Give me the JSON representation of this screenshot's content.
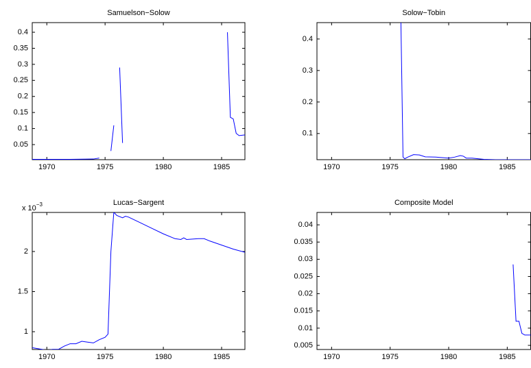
{
  "chart_data": [
    {
      "type": "line",
      "title": "Samuelson−Solow",
      "color": "#0000ff",
      "x": [
        1968.75,
        1970,
        1972,
        1974,
        1974.5,
        1975,
        1975.5,
        1975.75,
        1976,
        1976.25,
        1976.5,
        1980,
        1985.5,
        1985.75,
        1986,
        1986.25,
        1986.5,
        1987
      ],
      "values": [
        0.004,
        0.004,
        0.004,
        0.005,
        0.008,
        null,
        0.03,
        0.11,
        null,
        0.29,
        0.055,
        null,
        0.4,
        0.135,
        0.13,
        0.085,
        0.078,
        0.08
      ],
      "xlim": [
        1968.75,
        1987
      ],
      "xticks": [
        1970,
        1975,
        1980,
        1985
      ],
      "ylim": [
        0.003,
        0.43
      ],
      "yticks": [
        0.05,
        0.1,
        0.15,
        0.2,
        0.25,
        0.3,
        0.35,
        0.4
      ]
    },
    {
      "type": "line",
      "title": "Solow−Tobin",
      "color": "#0000ff",
      "x": [
        1975.9,
        1976.1,
        1976.25,
        1976.5,
        1977,
        1977.5,
        1978,
        1979,
        1980,
        1980.5,
        1981,
        1981.25,
        1981.5,
        1982,
        1983,
        1984,
        1987
      ],
      "values": [
        0.5,
        0.025,
        0.02,
        0.025,
        0.033,
        0.032,
        0.026,
        0.025,
        0.022,
        0.025,
        0.03,
        0.028,
        0.022,
        0.022,
        0.018,
        0.017,
        0.017
      ],
      "xlim": [
        1968.75,
        1987
      ],
      "xticks": [
        1970,
        1975,
        1980,
        1985
      ],
      "ylim": [
        0.017,
        0.452
      ],
      "yticks": [
        0.1,
        0.2,
        0.3,
        0.4
      ]
    },
    {
      "type": "line",
      "title": "Lucas−Sargent",
      "color": "#0000ff",
      "y_multiplier": {
        "base": "x 10",
        "exponent": "−3"
      },
      "x": [
        1968.75,
        1970,
        1970.5,
        1971,
        1971.5,
        1972,
        1972.5,
        1973,
        1973.5,
        1974,
        1974.5,
        1975,
        1975.25,
        1975.5,
        1975.75,
        1976,
        1976.5,
        1976.75,
        1977,
        1978,
        1979,
        1980,
        1981,
        1981.5,
        1981.75,
        1982,
        1983,
        1983.5,
        1984,
        1985,
        1986,
        1987
      ],
      "values": [
        0.8,
        0.77,
        0.78,
        0.78,
        0.82,
        0.85,
        0.85,
        0.88,
        0.87,
        0.86,
        0.9,
        0.93,
        0.97,
        2.0,
        2.49,
        2.45,
        2.42,
        2.44,
        2.43,
        2.36,
        2.29,
        2.22,
        2.16,
        2.15,
        2.17,
        2.15,
        2.16,
        2.16,
        2.13,
        2.08,
        2.03,
        1.99
      ],
      "xlim": [
        1968.75,
        1987
      ],
      "xticks": [
        1970,
        1975,
        1980,
        1985
      ],
      "ylim": [
        0.778,
        2.487
      ],
      "yticks": [
        1,
        1.5,
        2
      ]
    },
    {
      "type": "line",
      "title": "Composite Model",
      "color": "#0000ff",
      "x": [
        1985.5,
        1985.75,
        1986,
        1986.25,
        1986.5,
        1987
      ],
      "values": [
        0.0285,
        0.012,
        0.012,
        0.0085,
        0.008,
        0.008
      ],
      "xlim": [
        1968.75,
        1987
      ],
      "xticks": [
        1970,
        1975,
        1980,
        1985
      ],
      "ylim": [
        0.0038,
        0.0436
      ],
      "yticks": [
        0.005,
        0.01,
        0.015,
        0.02,
        0.025,
        0.03,
        0.035,
        0.04
      ]
    }
  ]
}
